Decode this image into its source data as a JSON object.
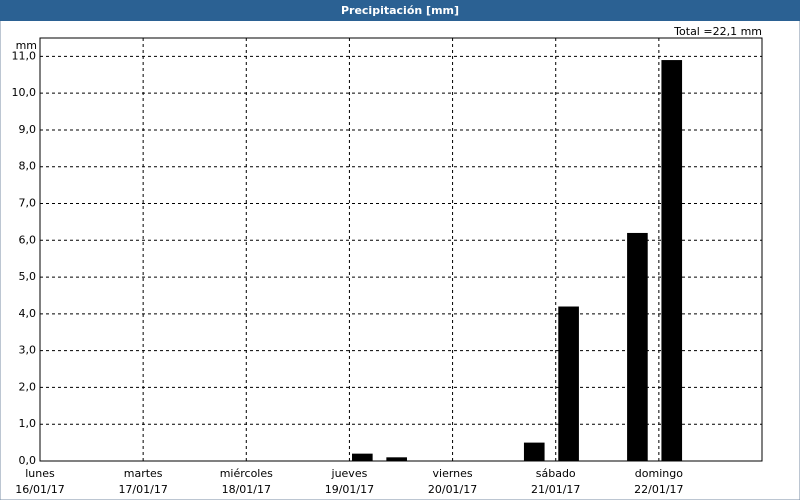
{
  "chart_data": {
    "type": "bar",
    "title": "Precipitación [mm]",
    "total_label": "Total =22,1 mm",
    "y_unit": "mm",
    "x": [
      3.125,
      3.458,
      4.792,
      5.125,
      5.792,
      6.125
    ],
    "values": [
      0.2,
      0.1,
      0.5,
      4.2,
      6.2,
      10.9
    ],
    "color": "#000000",
    "xlim": [
      0,
      7
    ],
    "xticks": [
      {
        "value": 0,
        "label": "lunes",
        "date": "16/01/17"
      },
      {
        "value": 1,
        "label": "martes",
        "date": "17/01/17"
      },
      {
        "value": 2,
        "label": "miércoles",
        "date": "18/01/17"
      },
      {
        "value": 3,
        "label": "jueves",
        "date": "19/01/17"
      },
      {
        "value": 4,
        "label": "viernes",
        "date": "20/01/17"
      },
      {
        "value": 5,
        "label": "sábado",
        "date": "21/01/17"
      },
      {
        "value": 6,
        "label": "domingo",
        "date": "22/01/17"
      }
    ],
    "ylim": [
      0,
      11.5
    ],
    "yticks": [
      {
        "value": 0,
        "label": "0,0"
      },
      {
        "value": 1,
        "label": "1,0"
      },
      {
        "value": 2,
        "label": "2,0"
      },
      {
        "value": 3,
        "label": "3,0"
      },
      {
        "value": 4,
        "label": "4,0"
      },
      {
        "value": 5,
        "label": "5,0"
      },
      {
        "value": 6,
        "label": "6,0"
      },
      {
        "value": 7,
        "label": "7,0"
      },
      {
        "value": 8,
        "label": "8,0"
      },
      {
        "value": 9,
        "label": "9,0"
      },
      {
        "value": 10,
        "label": "10,0"
      },
      {
        "value": 11,
        "label": "11,0"
      }
    ],
    "grid": true
  }
}
